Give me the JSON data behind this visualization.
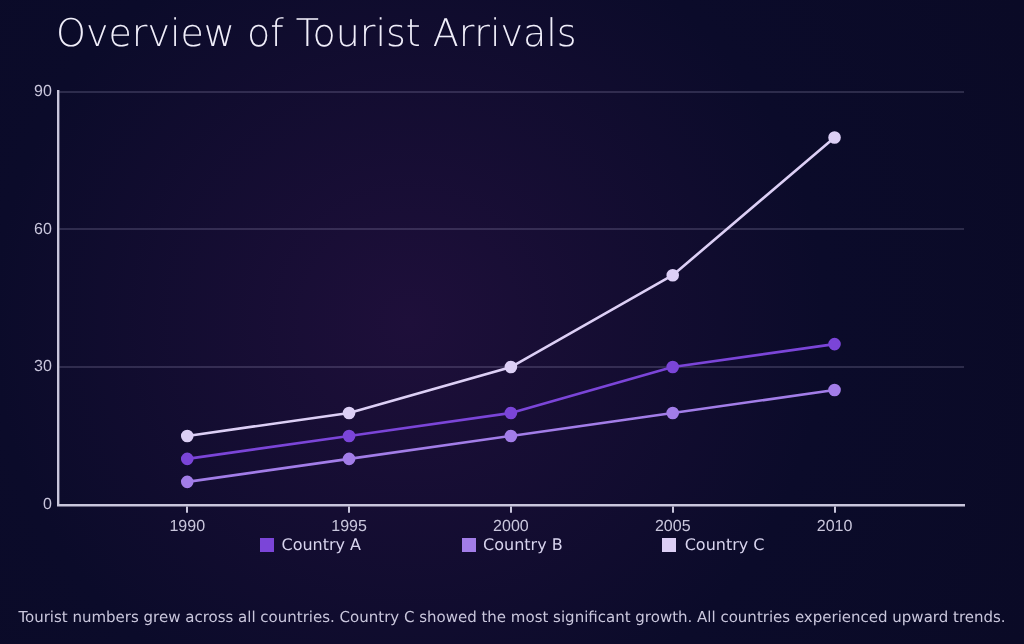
{
  "chart_data": {
    "type": "line",
    "title": "Overview of Tourist Arrivals",
    "x": [
      1990,
      1995,
      2000,
      2005,
      2010
    ],
    "series": [
      {
        "name": "Country A",
        "color": "#7b45d8",
        "values": [
          10,
          15,
          20,
          30,
          35
        ]
      },
      {
        "name": "Country B",
        "color": "#a27de8",
        "values": [
          5,
          10,
          15,
          20,
          25
        ]
      },
      {
        "name": "Country C",
        "color": "#dccff5",
        "values": [
          15,
          20,
          30,
          50,
          80
        ]
      }
    ],
    "xlim": [
      1986,
      2014
    ],
    "xticks": [
      1990,
      1995,
      2000,
      2005,
      2010
    ],
    "ylim": [
      0,
      90
    ],
    "yticks": [
      0,
      30,
      60,
      90
    ],
    "grid": "y",
    "legend": "bottom",
    "marker": "circle",
    "line_style": "solid",
    "annotations": [
      "Tourist numbers grew across all countries. Country C showed the most significant growth. All countries experienced upward trends."
    ]
  }
}
